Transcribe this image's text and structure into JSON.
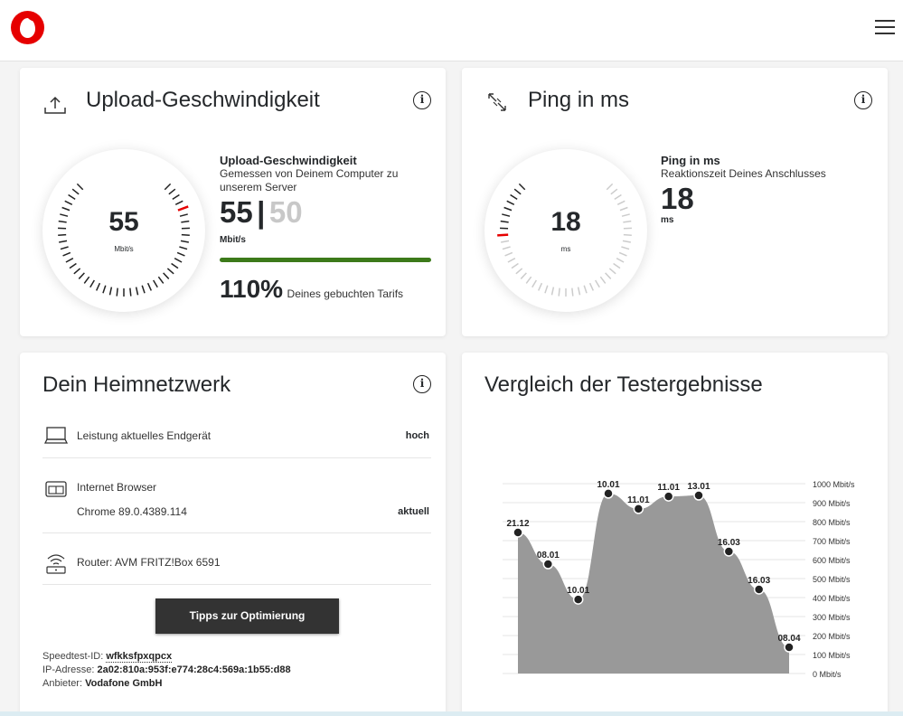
{
  "header": {
    "logo": "vodafone-logo",
    "menu_icon": "hamburger-menu-icon"
  },
  "upload": {
    "title": "Upload-Geschwindigkeit",
    "icon": "upload-icon",
    "gauge_value": "55",
    "gauge_unit": "Mbit/s",
    "detail_title": "Upload-Geschwindigkeit",
    "detail_sub": "Gemessen von Deinem Computer zu unserem Server",
    "measured": "55",
    "separator": "|",
    "booked": "50",
    "unit": "Mbit/s",
    "percent": "110%",
    "percent_label": "Deines gebuchten Tarifs",
    "bar_color": "#3c7a1a"
  },
  "ping": {
    "title": "Ping in ms",
    "icon": "ping-arrows-icon",
    "gauge_value": "18",
    "gauge_unit": "ms",
    "detail_title": "Ping in ms",
    "detail_sub": "Reaktionszeit Deines Anschlusses",
    "value": "18",
    "unit": "ms"
  },
  "network": {
    "title": "Dein Heimnetzwerk",
    "rows": [
      {
        "icon": "laptop-icon",
        "label": "Leistung aktuelles Endgerät",
        "value": "hoch"
      },
      {
        "icon": "browser-icon",
        "label": "Internet Browser",
        "sub": "Chrome 89.0.4389.114",
        "value": "aktuell"
      },
      {
        "icon": "router-icon",
        "label": "Router: AVM FRITZ!Box 6591"
      }
    ],
    "button": "Tipps zur Optimierung",
    "speedtest_label": "Speedtest-ID:",
    "speedtest_id": "wfkksfpxqpcx",
    "ip_label": "IP-Adresse:",
    "ip": "2a02:810a:953f:e774:28c4:569a:1b55:d88",
    "provider_label": "Anbieter:",
    "provider": "Vodafone GmbH"
  },
  "comparison": {
    "title": "Vergleich der Testergebnisse"
  },
  "chart_data": {
    "type": "area",
    "title": "Vergleich der Testergebnisse",
    "categories": [
      "21.12",
      "08.01",
      "10.01",
      "10.01",
      "11.01",
      "11.01",
      "13.01",
      "16.03",
      "16.03",
      "08.04"
    ],
    "values": [
      743,
      576,
      390,
      948,
      867,
      933,
      938,
      643,
      443,
      138
    ],
    "ylabel": "Mbit/s",
    "ylim": [
      0,
      1000
    ],
    "yticks": [
      "0 Mbit/s",
      "100 Mbit/s",
      "200 Mbit/s",
      "300 Mbit/s",
      "400 Mbit/s",
      "500 Mbit/s",
      "600 Mbit/s",
      "700 Mbit/s",
      "800 Mbit/s",
      "900 Mbit/s",
      "1000 Mbit/s"
    ],
    "grid": true,
    "fill_color": "#999999"
  }
}
